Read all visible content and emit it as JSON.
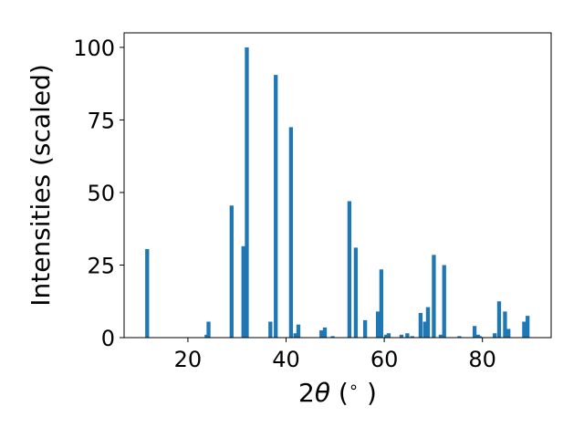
{
  "chart_data": {
    "type": "bar",
    "title": "",
    "xlabel": "2θ (°)",
    "xlabel_parts": {
      "prefix": "2",
      "theta": "θ",
      "suffix": " (",
      "degree": "∘",
      "close": " )"
    },
    "ylabel": "Intensities (scaled)",
    "xlim": [
      7,
      94
    ],
    "ylim": [
      0,
      105
    ],
    "xticks": [
      20,
      40,
      60,
      80
    ],
    "yticks": [
      0,
      25,
      50,
      75,
      100
    ],
    "grid": false,
    "bar_color": "#1f77b4",
    "bar_width": 0.8,
    "series": [
      {
        "x": [
          11.7,
          23.8,
          24.2,
          28.9,
          31.3,
          32.0,
          36.8,
          37.9,
          41.0,
          41.9,
          42.5,
          47.2,
          47.9,
          49.5,
          52.9,
          54.2,
          56.1,
          58.7,
          59.4,
          60.4,
          60.9,
          63.5,
          64.7,
          65.7,
          67.4,
          68.3,
          68.9,
          70.1,
          71.5,
          72.2,
          75.3,
          78.4,
          79.1,
          79.5,
          82.5,
          83.4,
          84.6,
          85.3,
          88.5,
          89.2
        ],
        "values": [
          30.5,
          1.0,
          5.5,
          45.5,
          31.5,
          100.0,
          5.5,
          90.5,
          72.5,
          1.5,
          4.5,
          2.5,
          3.5,
          0.5,
          47.0,
          31.0,
          6.0,
          9.0,
          23.5,
          1.0,
          1.5,
          1.0,
          1.5,
          0.5,
          8.5,
          5.5,
          10.5,
          28.5,
          1.0,
          25.0,
          0.5,
          4.0,
          1.0,
          0.5,
          1.5,
          12.5,
          9.0,
          3.0,
          5.5,
          7.5
        ]
      }
    ]
  }
}
